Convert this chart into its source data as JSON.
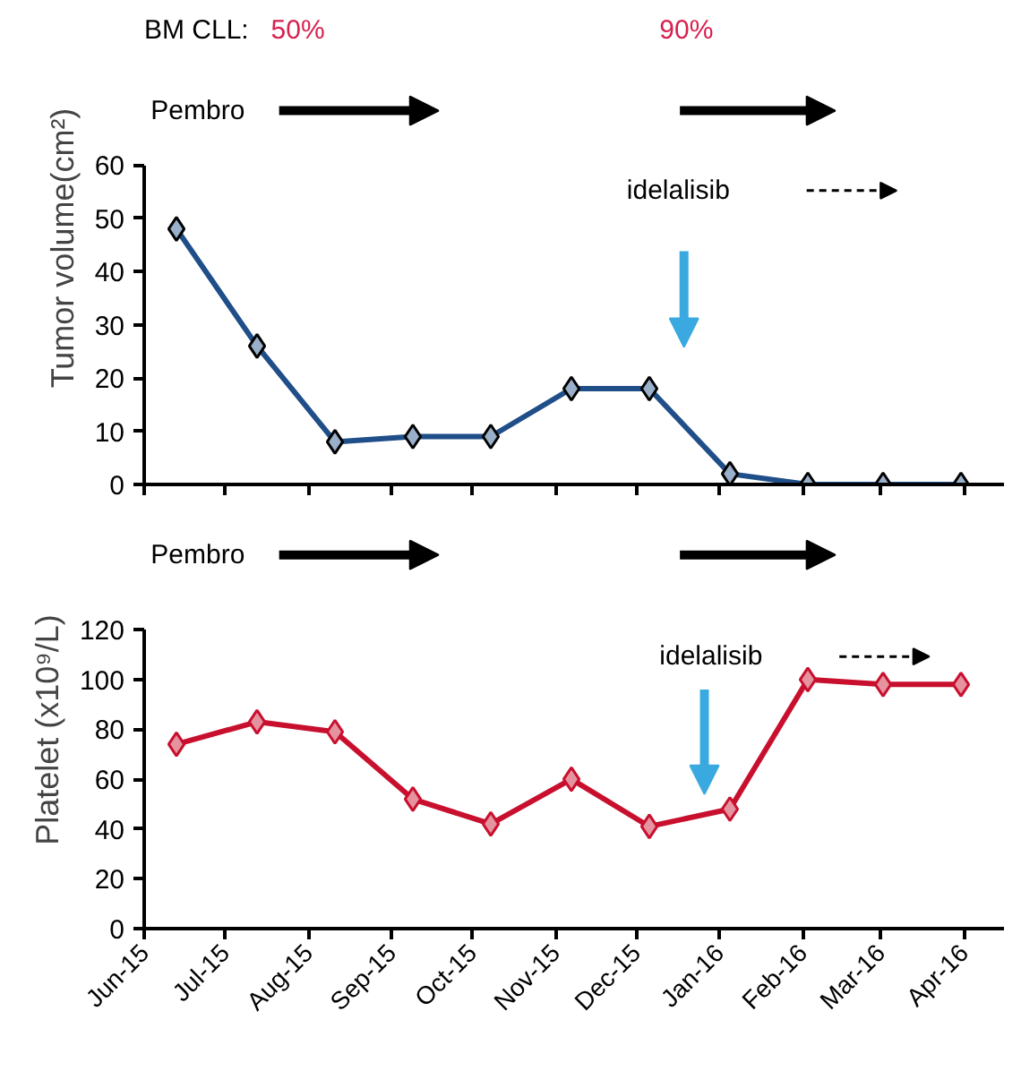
{
  "chart_data": [
    {
      "type": "line",
      "ylabel": "Tumor volume(cm²)",
      "x": [
        "2015-06-13",
        "2015-07-13",
        "2015-08-11",
        "2015-09-09",
        "2015-10-08",
        "2015-11-07",
        "2015-12-06",
        "2016-01-05",
        "2016-02-03",
        "2016-03-02",
        "2016-03-31"
      ],
      "series": [
        {
          "color": "#1f4e89",
          "values": [
            48,
            26,
            8,
            9,
            9,
            18,
            18,
            2,
            0,
            0,
            0
          ]
        }
      ],
      "xlim": [
        "2015-06-01",
        "2016-04-16"
      ],
      "xticks": [
        {
          "value": "2015-06-01",
          "label": null
        },
        {
          "value": "2015-07-01",
          "label": null
        },
        {
          "value": "2015-08-01",
          "label": null
        },
        {
          "value": "2015-09-01",
          "label": null
        },
        {
          "value": "2015-10-01",
          "label": null
        },
        {
          "value": "2015-11-01",
          "label": null
        },
        {
          "value": "2015-12-01",
          "label": null
        },
        {
          "value": "2016-01-01",
          "label": null
        },
        {
          "value": "2016-02-01",
          "label": null
        },
        {
          "value": "2016-03-01",
          "label": null
        },
        {
          "value": "2016-04-01",
          "label": null
        }
      ],
      "ylim": [
        0,
        60
      ],
      "yticks": [
        0,
        10,
        20,
        30,
        40,
        50,
        60
      ],
      "tick_labels": "y",
      "grid": false,
      "marker": "diamond",
      "line_style": "solid",
      "annotations": [
        "BM CLL:",
        "50%",
        "90%",
        "Pembro",
        "idelalisib"
      ]
    },
    {
      "type": "line",
      "ylabel": "Platelet (x10⁹/L)",
      "x": [
        "2015-06-13",
        "2015-07-13",
        "2015-08-11",
        "2015-09-09",
        "2015-10-08",
        "2015-11-07",
        "2015-12-06",
        "2016-01-05",
        "2016-02-03",
        "2016-03-02",
        "2016-03-31"
      ],
      "series": [
        {
          "color": "#c8102e",
          "values": [
            74,
            83,
            79,
            52,
            42,
            60,
            41,
            48,
            100,
            98,
            98
          ]
        }
      ],
      "xlim": [
        "2015-06-01",
        "2016-04-16"
      ],
      "xticks": [
        {
          "value": "2015-06-01",
          "label": "Jun-15"
        },
        {
          "value": "2015-07-01",
          "label": "Jul-15"
        },
        {
          "value": "2015-08-01",
          "label": "Aug-15"
        },
        {
          "value": "2015-09-01",
          "label": "Sep-15"
        },
        {
          "value": "2015-10-01",
          "label": "Oct-15"
        },
        {
          "value": "2015-11-01",
          "label": "Nov-15"
        },
        {
          "value": "2015-12-01",
          "label": "Dec-15"
        },
        {
          "value": "2016-01-01",
          "label": "Jan-16"
        },
        {
          "value": "2016-02-01",
          "label": "Feb-16"
        },
        {
          "value": "2016-03-01",
          "label": "Mar-16"
        },
        {
          "value": "2016-04-01",
          "label": "Apr-16"
        }
      ],
      "ylim": [
        0,
        120
      ],
      "yticks": [
        0,
        20,
        40,
        60,
        80,
        100,
        120
      ],
      "grid": false,
      "marker": "diamond",
      "line_style": "solid",
      "annotations": [
        "Pembro",
        "idelalisib"
      ]
    }
  ]
}
